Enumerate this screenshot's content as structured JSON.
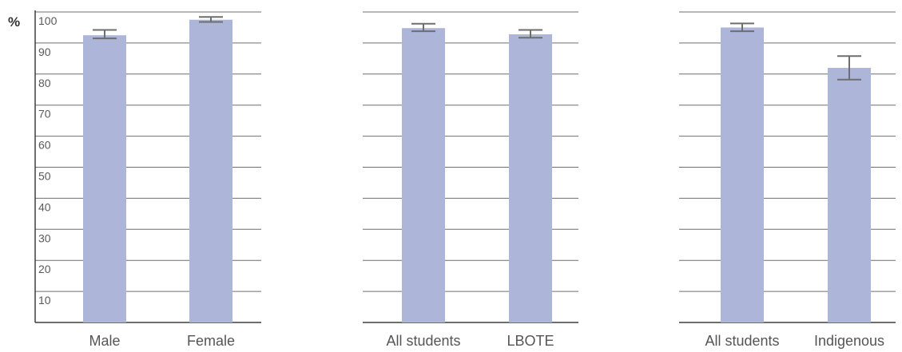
{
  "chart_data": [
    {
      "type": "bar",
      "categories": [
        "Male",
        "Female"
      ],
      "values": [
        92.5,
        97.5
      ],
      "error_low": [
        91.5,
        96.8
      ],
      "error_high": [
        94.2,
        98.4
      ],
      "ylim": [
        0,
        100
      ],
      "y_ticks": [
        "10",
        "20",
        "30",
        "40",
        "50",
        "60",
        "70",
        "80",
        "90",
        "100"
      ],
      "ylabel": "%",
      "grid": true,
      "bar_color": "#adb5d9"
    },
    {
      "type": "bar",
      "categories": [
        "All students",
        "LBOTE"
      ],
      "values": [
        94.8,
        92.8
      ],
      "error_low": [
        93.8,
        91.7
      ],
      "error_high": [
        96.2,
        94.2
      ],
      "ylim": [
        0,
        100
      ],
      "grid": true,
      "bar_color": "#adb5d9"
    },
    {
      "type": "bar",
      "categories": [
        "All students",
        "Indigenous"
      ],
      "values": [
        95.0,
        82.0
      ],
      "error_low": [
        93.8,
        78.2
      ],
      "error_high": [
        96.3,
        85.8
      ],
      "ylim": [
        0,
        100
      ],
      "grid": true,
      "bar_color": "#adb5d9"
    }
  ]
}
